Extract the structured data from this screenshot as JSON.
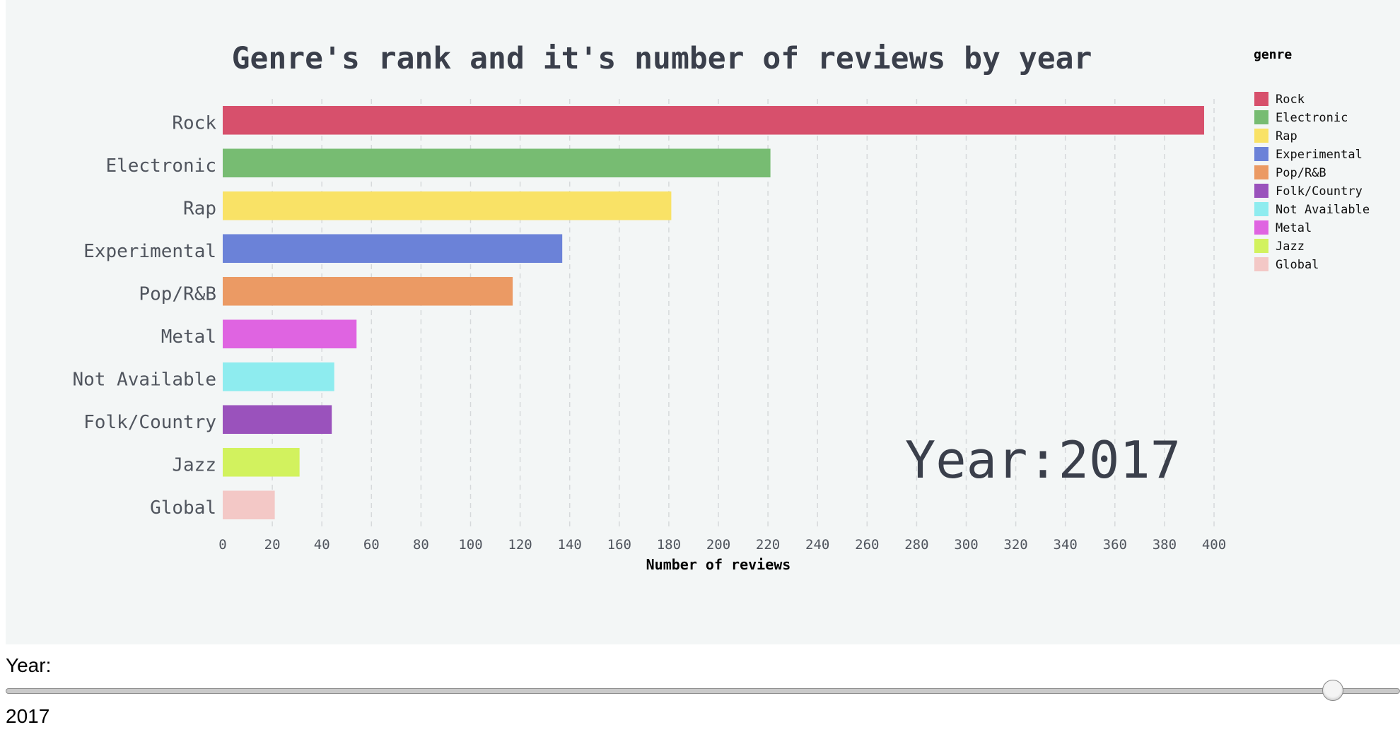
{
  "chart_data": {
    "type": "bar",
    "orientation": "horizontal",
    "title": "Genre's rank and it's number of reviews by year",
    "xlabel": "Number of reviews",
    "ylabel": "",
    "xlim": [
      0,
      400
    ],
    "x_ticks": [
      0,
      20,
      40,
      60,
      80,
      100,
      120,
      140,
      160,
      180,
      200,
      220,
      240,
      260,
      280,
      300,
      320,
      340,
      360,
      380,
      400
    ],
    "grid": "vertical dashed",
    "categories": [
      "Rock",
      "Electronic",
      "Rap",
      "Experimental",
      "Pop/R&B",
      "Metal",
      "Not Available",
      "Folk/Country",
      "Jazz",
      "Global"
    ],
    "values": [
      396,
      221,
      181,
      137,
      117,
      54,
      45,
      44,
      31,
      21
    ],
    "colors": {
      "Rock": "#d7506c",
      "Electronic": "#77bc72",
      "Rap": "#f9e266",
      "Experimental": "#6b82d8",
      "Pop/R&B": "#eb9a64",
      "Folk/Country": "#9a52bc",
      "Not Available": "#8eecef",
      "Metal": "#df64e1",
      "Jazz": "#d2f25e",
      "Global": "#f3c8c6"
    },
    "legend": {
      "title": "genre",
      "placement": "top-right",
      "items": [
        "Rock",
        "Electronic",
        "Rap",
        "Experimental",
        "Pop/R&B",
        "Folk/Country",
        "Not Available",
        "Metal",
        "Jazz",
        "Global"
      ]
    },
    "annotation": "Year:2017"
  },
  "slider": {
    "label": "Year:",
    "value": "2017",
    "position_fraction": 0.952
  }
}
